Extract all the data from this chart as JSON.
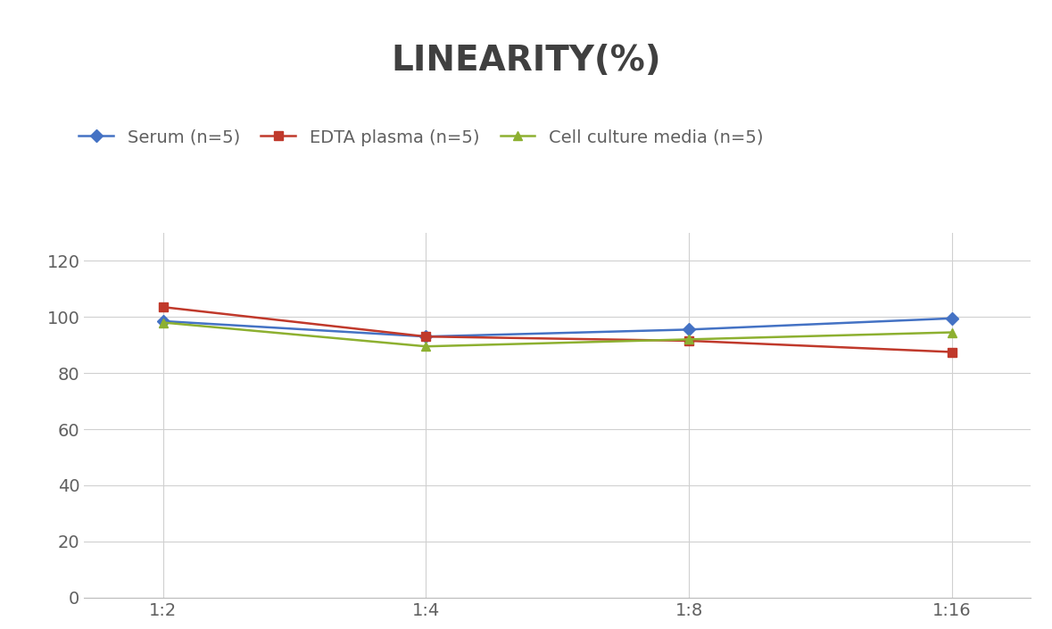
{
  "title": "LINEARITY(%)",
  "title_fontsize": 28,
  "title_fontweight": "bold",
  "title_color": "#404040",
  "x_labels": [
    "1:2",
    "1:4",
    "1:8",
    "1:16"
  ],
  "x_positions": [
    0,
    1,
    2,
    3
  ],
  "series": [
    {
      "label": "Serum (n=5)",
      "values": [
        98.5,
        93.0,
        95.5,
        99.5
      ],
      "color": "#4472C4",
      "marker": "D",
      "markersize": 7,
      "linewidth": 1.8
    },
    {
      "label": "EDTA plasma (n=5)",
      "values": [
        103.5,
        93.0,
        91.5,
        87.5
      ],
      "color": "#C0392B",
      "marker": "s",
      "markersize": 7,
      "linewidth": 1.8
    },
    {
      "label": "Cell culture media (n=5)",
      "values": [
        98.0,
        89.5,
        92.0,
        94.5
      ],
      "color": "#8DB030",
      "marker": "^",
      "markersize": 7,
      "linewidth": 1.8
    }
  ],
  "ylim": [
    0,
    130
  ],
  "yticks": [
    0,
    20,
    40,
    60,
    80,
    100,
    120
  ],
  "tick_fontsize": 14,
  "tick_color": "#606060",
  "legend_fontsize": 14,
  "grid_color": "#D0D0D0",
  "grid_linewidth": 0.8,
  "background_color": "#FFFFFF",
  "spine_color": "#BBBBBB"
}
